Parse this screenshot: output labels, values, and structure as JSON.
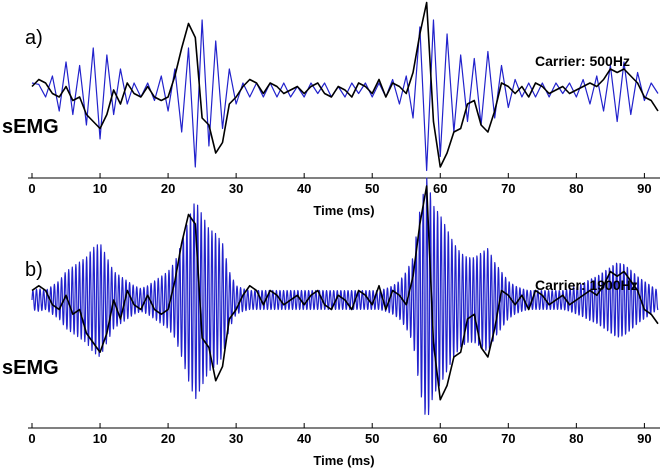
{
  "chart_data": [
    {
      "type": "line",
      "panel_label": "a)",
      "carrier_label": "Carrier: 500Hz",
      "signal_label": "sEMG",
      "xlabel": "Time (ms)",
      "ylabel": "",
      "xlim": [
        0,
        92
      ],
      "xticks": [
        "0",
        "10",
        "20",
        "30",
        "40",
        "50",
        "60",
        "70",
        "80",
        "90"
      ],
      "grid": false,
      "carrier_hz": 500,
      "series": [
        {
          "role": "envelope",
          "color": "#000000",
          "x": [
            0,
            1,
            2,
            3,
            4,
            5,
            6,
            7,
            8,
            9,
            10,
            11,
            12,
            13,
            14,
            15,
            16,
            17,
            18,
            19,
            20,
            21,
            22,
            23,
            24,
            25,
            26,
            27,
            28,
            29,
            30,
            31,
            32,
            33,
            34,
            35,
            36,
            37,
            38,
            39,
            40,
            41,
            42,
            43,
            44,
            45,
            46,
            47,
            48,
            49,
            50,
            51,
            52,
            53,
            54,
            55,
            56,
            57,
            58,
            59,
            60,
            61,
            62,
            63,
            64,
            65,
            66,
            67,
            68,
            69,
            70,
            71,
            72,
            73,
            74,
            75,
            76,
            77,
            78,
            79,
            80,
            81,
            82,
            83,
            84,
            85,
            86,
            87,
            88,
            89,
            90,
            91,
            92
          ],
          "y": [
            0.05,
            0.15,
            0.1,
            -0.05,
            -0.1,
            0.05,
            -0.15,
            -0.1,
            -0.35,
            -0.45,
            -0.55,
            -0.35,
            0.0,
            -0.2,
            0.1,
            -0.05,
            -0.1,
            0.05,
            -0.1,
            -0.15,
            -0.1,
            0.2,
            0.6,
            0.95,
            0.75,
            -0.4,
            -0.5,
            -0.9,
            -0.75,
            -0.2,
            -0.1,
            0.05,
            0.15,
            0.1,
            -0.05,
            0.1,
            0.05,
            -0.05,
            0.0,
            0.05,
            -0.05,
            0.05,
            0.1,
            -0.05,
            -0.1,
            0.05,
            0.0,
            -0.1,
            0.1,
            0.05,
            -0.05,
            0.15,
            -0.1,
            0.1,
            0.05,
            -0.05,
            0.25,
            0.8,
            1.25,
            -0.45,
            -1.1,
            -0.9,
            -0.6,
            -0.55,
            -0.2,
            -0.15,
            -0.5,
            -0.6,
            -0.3,
            0.1,
            0.05,
            -0.05,
            0.05,
            -0.1,
            0.1,
            0.05,
            -0.05,
            0.0,
            0.05,
            -0.05,
            0.0,
            0.05,
            0.1,
            0.05,
            0.15,
            0.3,
            0.25,
            0.3,
            0.2,
            0.1,
            -0.1,
            -0.15,
            -0.3
          ]
        },
        {
          "role": "modulated-carrier",
          "color": "#2222cc",
          "x": [
            0,
            1,
            2,
            3,
            4,
            5,
            6,
            7,
            8,
            9,
            10,
            11,
            12,
            13,
            14,
            15,
            16,
            17,
            18,
            19,
            20,
            21,
            22,
            23,
            24,
            25,
            26,
            27,
            28,
            29,
            30,
            31,
            32,
            33,
            34,
            35,
            36,
            37,
            38,
            39,
            40,
            41,
            42,
            43,
            44,
            45,
            46,
            47,
            48,
            49,
            50,
            51,
            52,
            53,
            54,
            55,
            56,
            57,
            58,
            59,
            60,
            61,
            62,
            63,
            64,
            65,
            66,
            67,
            68,
            69,
            70,
            71,
            72,
            73,
            74,
            75,
            76,
            77,
            78,
            79,
            80,
            81,
            82,
            83,
            84,
            85,
            86,
            87,
            88,
            89,
            90,
            91,
            92
          ],
          "y": [
            0.1,
            0.08,
            -0.1,
            0.2,
            -0.3,
            0.4,
            -0.35,
            0.35,
            -0.5,
            0.6,
            -0.7,
            0.5,
            -0.35,
            0.3,
            -0.2,
            0.1,
            -0.1,
            0.1,
            -0.15,
            0.2,
            -0.3,
            0.3,
            -0.6,
            0.6,
            -1.1,
            1.0,
            -0.8,
            0.7,
            -0.55,
            0.3,
            -0.2,
            0.1,
            -0.1,
            0.1,
            -0.1,
            0.1,
            -0.1,
            0.1,
            -0.1,
            0.05,
            -0.1,
            0.1,
            -0.05,
            0.1,
            -0.1,
            0.05,
            -0.1,
            0.1,
            -0.05,
            0.1,
            -0.1,
            0.1,
            -0.1,
            0.15,
            -0.2,
            0.2,
            -0.4,
            0.9,
            -1.15,
            1.0,
            -0.95,
            0.8,
            -0.6,
            0.5,
            -0.45,
            0.45,
            -0.5,
            0.55,
            -0.4,
            0.35,
            -0.25,
            0.15,
            -0.1,
            0.1,
            -0.1,
            0.1,
            -0.1,
            0.1,
            -0.05,
            0.1,
            -0.1,
            0.15,
            -0.2,
            0.2,
            -0.3,
            0.35,
            -0.45,
            0.4,
            -0.35,
            0.25,
            -0.15,
            0.1,
            -0.05
          ]
        }
      ]
    },
    {
      "type": "line",
      "panel_label": "b)",
      "carrier_label": "Carrier: 1900Hz",
      "signal_label": "sEMG",
      "xlabel": "Time (ms)",
      "ylabel": "",
      "xlim": [
        0,
        92
      ],
      "xticks": [
        "0",
        "10",
        "20",
        "30",
        "40",
        "50",
        "60",
        "70",
        "80",
        "90"
      ],
      "grid": false,
      "carrier_hz": 1900,
      "series": [
        {
          "role": "envelope",
          "color": "#000000",
          "x": [
            0,
            1,
            2,
            3,
            4,
            5,
            6,
            7,
            8,
            9,
            10,
            11,
            12,
            13,
            14,
            15,
            16,
            17,
            18,
            19,
            20,
            21,
            22,
            23,
            24,
            25,
            26,
            27,
            28,
            29,
            30,
            31,
            32,
            33,
            34,
            35,
            36,
            37,
            38,
            39,
            40,
            41,
            42,
            43,
            44,
            45,
            46,
            47,
            48,
            49,
            50,
            51,
            52,
            53,
            54,
            55,
            56,
            57,
            58,
            59,
            60,
            61,
            62,
            63,
            64,
            65,
            66,
            67,
            68,
            69,
            70,
            71,
            72,
            73,
            74,
            75,
            76,
            77,
            78,
            79,
            80,
            81,
            82,
            83,
            84,
            85,
            86,
            87,
            88,
            89,
            90,
            91,
            92
          ],
          "y": [
            0.1,
            0.15,
            0.1,
            -0.05,
            -0.1,
            0.05,
            -0.15,
            -0.1,
            -0.35,
            -0.45,
            -0.55,
            -0.35,
            0.0,
            -0.2,
            0.1,
            -0.05,
            -0.1,
            0.05,
            -0.1,
            -0.15,
            -0.1,
            0.2,
            0.6,
            0.9,
            0.8,
            -0.4,
            -0.5,
            -0.85,
            -0.7,
            -0.2,
            -0.1,
            0.05,
            0.15,
            0.1,
            -0.05,
            0.1,
            0.05,
            -0.05,
            0.0,
            0.05,
            -0.05,
            0.05,
            0.1,
            -0.05,
            -0.1,
            0.05,
            0.0,
            -0.1,
            0.1,
            0.05,
            -0.05,
            0.15,
            -0.1,
            0.1,
            0.05,
            -0.05,
            0.25,
            0.8,
            1.2,
            -0.45,
            -1.05,
            -0.9,
            -0.6,
            -0.55,
            -0.2,
            -0.15,
            -0.5,
            -0.6,
            -0.3,
            0.1,
            0.05,
            -0.05,
            0.05,
            -0.1,
            0.1,
            0.05,
            -0.05,
            0.0,
            0.05,
            -0.05,
            0.0,
            0.05,
            0.1,
            0.05,
            0.15,
            0.3,
            0.25,
            0.3,
            0.2,
            0.1,
            -0.1,
            -0.15,
            -0.25
          ]
        },
        {
          "role": "modulated-carrier",
          "color": "#2222cc",
          "x": [
            0,
            1,
            2,
            3,
            4,
            5,
            6,
            7,
            8,
            9,
            10,
            11,
            12,
            13,
            14,
            15,
            16,
            17,
            18,
            19,
            20,
            21,
            22,
            23,
            24,
            25,
            26,
            27,
            28,
            29,
            30,
            31,
            32,
            33,
            34,
            35,
            36,
            37,
            38,
            39,
            40,
            41,
            42,
            43,
            44,
            45,
            46,
            47,
            48,
            49,
            50,
            51,
            52,
            53,
            54,
            55,
            56,
            57,
            58,
            59,
            60,
            61,
            62,
            63,
            64,
            65,
            66,
            67,
            68,
            69,
            70,
            71,
            72,
            73,
            74,
            75,
            76,
            77,
            78,
            79,
            80,
            81,
            82,
            83,
            84,
            85,
            86,
            87,
            88,
            89,
            90,
            91,
            92
          ],
          "y": [
            0.1,
            0.12,
            0.1,
            0.15,
            0.2,
            0.3,
            0.35,
            0.4,
            0.45,
            0.55,
            0.6,
            0.45,
            0.3,
            0.25,
            0.2,
            0.15,
            0.12,
            0.15,
            0.2,
            0.25,
            0.3,
            0.4,
            0.6,
            0.85,
            1.05,
            0.9,
            0.75,
            0.7,
            0.6,
            0.3,
            0.15,
            0.12,
            0.1,
            0.1,
            0.1,
            0.1,
            0.1,
            0.1,
            0.1,
            0.1,
            0.1,
            0.1,
            0.1,
            0.1,
            0.1,
            0.1,
            0.1,
            0.1,
            0.1,
            0.1,
            0.1,
            0.1,
            0.12,
            0.15,
            0.2,
            0.3,
            0.45,
            0.95,
            1.3,
            1.0,
            0.9,
            0.75,
            0.6,
            0.5,
            0.45,
            0.45,
            0.5,
            0.55,
            0.4,
            0.3,
            0.2,
            0.15,
            0.12,
            0.1,
            0.1,
            0.1,
            0.1,
            0.1,
            0.1,
            0.12,
            0.15,
            0.18,
            0.22,
            0.25,
            0.3,
            0.35,
            0.4,
            0.38,
            0.32,
            0.25,
            0.2,
            0.15,
            0.1
          ]
        }
      ]
    }
  ]
}
